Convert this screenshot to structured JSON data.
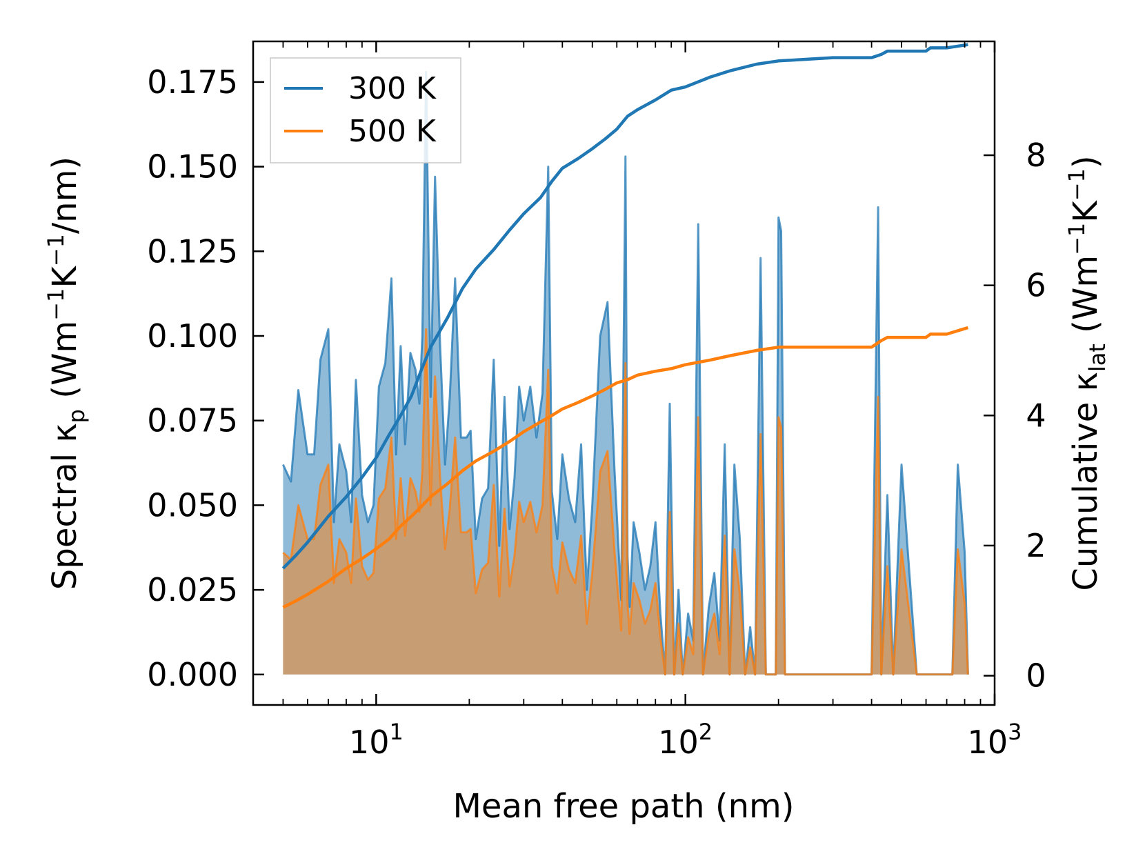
{
  "chart_data": {
    "type": "area",
    "xscale": "log",
    "xlim": [
      4.0,
      1000
    ],
    "ylim_left": [
      -0.009,
      0.187
    ],
    "ylim_right": [
      -0.45,
      9.75
    ],
    "xlabel": "Mean free path (nm)",
    "ylabel_left": {
      "main": "Spectral κ",
      "main_sub": "p",
      "unit_prefix": " (Wm",
      "sup1": "−1",
      "unit_mid": "K",
      "sup2": "−1",
      "unit_suffix": "/nm)"
    },
    "ylabel_right": {
      "main": "Cumulative κ",
      "main_sub": "lat",
      "unit_prefix": " (Wm",
      "sup1": "−1",
      "unit_mid": "K",
      "sup2": "−1",
      "unit_suffix": ")"
    },
    "x_ticks": [
      {
        "value": 10,
        "base": "10",
        "exp": "1"
      },
      {
        "value": 100,
        "base": "10",
        "exp": "2"
      },
      {
        "value": 1000,
        "base": "10",
        "exp": "3"
      }
    ],
    "y_ticks_left": [
      {
        "value": 0.0,
        "label": "0.000"
      },
      {
        "value": 0.025,
        "label": "0.025"
      },
      {
        "value": 0.05,
        "label": "0.050"
      },
      {
        "value": 0.075,
        "label": "0.075"
      },
      {
        "value": 0.1,
        "label": "0.100"
      },
      {
        "value": 0.125,
        "label": "0.125"
      },
      {
        "value": 0.15,
        "label": "0.150"
      },
      {
        "value": 0.175,
        "label": "0.175"
      }
    ],
    "y_ticks_right": [
      {
        "value": 0,
        "label": "0"
      },
      {
        "value": 2,
        "label": "2"
      },
      {
        "value": 4,
        "label": "4"
      },
      {
        "value": 6,
        "label": "6"
      },
      {
        "value": 8,
        "label": "8"
      }
    ],
    "legend": {
      "placement": "top-left",
      "entries": [
        {
          "label": "300 K",
          "color": "#1f77b4"
        },
        {
          "label": "500 K",
          "color": "#ff7f0e"
        }
      ]
    },
    "spectral_series": [
      {
        "name": "300 K",
        "color": "#1f77b4",
        "fill": "#1f77b4",
        "x": [
          5,
          5.3,
          5.6,
          6.0,
          6.3,
          6.6,
          7.0,
          7.3,
          7.6,
          8.0,
          8.3,
          8.6,
          9.0,
          9.4,
          9.8,
          10.2,
          10.7,
          11.2,
          11.6,
          12.0,
          12.4,
          12.9,
          13.4,
          13.8,
          14.1,
          14.5,
          15.0,
          15.5,
          16.1,
          16.7,
          17.3,
          18.0,
          18.8,
          19.6,
          20.2,
          21.0,
          22.0,
          23.0,
          24.0,
          25.0,
          26.0,
          27.0,
          28.0,
          29.0,
          30.0,
          31.5,
          33.0,
          34.5,
          36.0,
          37.0,
          38.5,
          40.0,
          42.0,
          44.0,
          46.0,
          48.0,
          50.0,
          53.0,
          56.0,
          59.0,
          62.0,
          64.0,
          65.0,
          66.0,
          68.0,
          71.0,
          74.0,
          77.0,
          80.0,
          83.0,
          86.0,
          89.0,
          92.0,
          95.0,
          98.0,
          102,
          106,
          110,
          114,
          119,
          124,
          129,
          134,
          139,
          144,
          150,
          156,
          162,
          168,
          175,
          182,
          189,
          196,
          200,
          204,
          210,
          300,
          400,
          420,
          430,
          450,
          470,
          500,
          560,
          600,
          610,
          620,
          640,
          680,
          700,
          730,
          760,
          800,
          820
        ],
        "y": [
          0.062,
          0.057,
          0.084,
          0.065,
          0.065,
          0.093,
          0.102,
          0.045,
          0.068,
          0.06,
          0.045,
          0.087,
          0.053,
          0.045,
          0.05,
          0.085,
          0.092,
          0.117,
          0.065,
          0.097,
          0.068,
          0.095,
          0.09,
          0.08,
          0.1,
          0.178,
          0.082,
          0.147,
          0.097,
          0.062,
          0.082,
          0.117,
          0.07,
          0.07,
          0.072,
          0.04,
          0.052,
          0.055,
          0.093,
          0.038,
          0.082,
          0.043,
          0.058,
          0.085,
          0.075,
          0.085,
          0.07,
          0.083,
          0.15,
          0.054,
          0.04,
          0.065,
          0.052,
          0.045,
          0.068,
          0.025,
          0.05,
          0.1,
          0.11,
          0.06,
          0.022,
          0.153,
          0.035,
          0.02,
          0.045,
          0.036,
          0.025,
          0.032,
          0.045,
          0.018,
          0.0,
          0.08,
          0.0,
          0.025,
          0.0,
          0.018,
          0.01,
          0.133,
          0.0,
          0.02,
          0.03,
          0.01,
          0.068,
          0.0,
          0.062,
          0.04,
          0.0,
          0.014,
          0.0,
          0.123,
          0.0,
          0.0,
          0.0,
          0.135,
          0.131,
          0.0,
          0.0,
          0.0,
          0.138,
          0.0,
          0.053,
          0.0,
          0.062,
          0.0,
          0.0,
          0.0,
          0.0,
          0.0,
          0.0,
          0.0,
          0.0,
          0.062,
          0.036,
          0.0
        ]
      },
      {
        "name": "500 K",
        "color": "#ff7f0e",
        "fill": "#ff7f0e",
        "x": [
          5,
          5.3,
          5.6,
          6.0,
          6.3,
          6.6,
          7.0,
          7.3,
          7.6,
          8.0,
          8.3,
          8.6,
          9.0,
          9.4,
          9.8,
          10.2,
          10.7,
          11.2,
          11.6,
          12.0,
          12.4,
          12.9,
          13.4,
          13.8,
          14.1,
          14.5,
          15.0,
          15.5,
          16.1,
          16.7,
          17.3,
          18.0,
          18.8,
          19.6,
          20.2,
          21.0,
          22.0,
          23.0,
          24.0,
          25.0,
          26.0,
          27.0,
          28.0,
          29.0,
          30.0,
          31.5,
          33.0,
          34.5,
          36.0,
          37.0,
          38.5,
          40.0,
          42.0,
          44.0,
          46.0,
          48.0,
          50.0,
          53.0,
          56.0,
          59.0,
          62.0,
          64.0,
          65.0,
          66.0,
          68.0,
          71.0,
          74.0,
          77.0,
          80.0,
          83.0,
          86.0,
          89.0,
          92.0,
          95.0,
          98.0,
          102,
          106,
          110,
          114,
          119,
          124,
          129,
          134,
          139,
          144,
          150,
          156,
          162,
          168,
          175,
          182,
          189,
          196,
          200,
          204,
          210,
          300,
          400,
          420,
          430,
          450,
          470,
          500,
          560,
          600,
          610,
          620,
          640,
          680,
          700,
          730,
          760,
          800,
          820
        ],
        "y": [
          0.036,
          0.034,
          0.05,
          0.04,
          0.04,
          0.056,
          0.062,
          0.027,
          0.04,
          0.036,
          0.027,
          0.052,
          0.032,
          0.028,
          0.03,
          0.052,
          0.055,
          0.07,
          0.04,
          0.058,
          0.041,
          0.058,
          0.054,
          0.048,
          0.06,
          0.102,
          0.05,
          0.088,
          0.058,
          0.037,
          0.049,
          0.07,
          0.042,
          0.042,
          0.043,
          0.024,
          0.031,
          0.033,
          0.056,
          0.023,
          0.049,
          0.026,
          0.035,
          0.051,
          0.045,
          0.051,
          0.042,
          0.05,
          0.09,
          0.032,
          0.024,
          0.039,
          0.031,
          0.027,
          0.041,
          0.015,
          0.03,
          0.06,
          0.066,
          0.036,
          0.013,
          0.092,
          0.021,
          0.012,
          0.027,
          0.022,
          0.015,
          0.019,
          0.027,
          0.011,
          0.0,
          0.048,
          0.0,
          0.015,
          0.0,
          0.011,
          0.006,
          0.076,
          0.0,
          0.012,
          0.018,
          0.006,
          0.041,
          0.0,
          0.037,
          0.024,
          0.0,
          0.008,
          0.0,
          0.071,
          0.0,
          0.0,
          0.0,
          0.076,
          0.073,
          0.0,
          0.0,
          0.0,
          0.082,
          0.0,
          0.032,
          0.0,
          0.037,
          0.0,
          0.0,
          0.0,
          0.0,
          0.0,
          0.0,
          0.0,
          0.0,
          0.037,
          0.021,
          0.0
        ]
      }
    ],
    "cumulative_series": [
      {
        "name": "300 K",
        "color": "#1f77b4",
        "x": [
          5,
          5.5,
          6,
          7,
          8,
          9,
          10,
          11,
          12,
          13,
          14,
          15,
          17,
          19,
          21,
          24,
          27,
          30,
          34,
          37,
          40,
          45,
          50,
          55,
          60,
          65,
          70,
          80,
          90,
          100,
          120,
          140,
          170,
          200,
          300,
          400,
          430,
          450,
          600,
          620,
          700,
          820
        ],
        "y": [
          1.65,
          1.85,
          2.05,
          2.45,
          2.75,
          3.05,
          3.35,
          3.7,
          4.0,
          4.3,
          4.7,
          5.05,
          5.5,
          5.95,
          6.25,
          6.55,
          6.85,
          7.1,
          7.35,
          7.6,
          7.8,
          7.95,
          8.1,
          8.25,
          8.4,
          8.6,
          8.7,
          8.85,
          9.0,
          9.05,
          9.2,
          9.3,
          9.4,
          9.45,
          9.5,
          9.5,
          9.55,
          9.6,
          9.6,
          9.65,
          9.65,
          9.7
        ]
      },
      {
        "name": "500 K",
        "color": "#ff7f0e",
        "x": [
          5,
          5.5,
          6,
          7,
          8,
          9,
          10,
          11,
          12,
          13,
          14,
          15,
          17,
          19,
          21,
          24,
          27,
          30,
          34,
          37,
          40,
          45,
          50,
          55,
          60,
          65,
          70,
          80,
          90,
          100,
          120,
          140,
          170,
          200,
          300,
          400,
          430,
          450,
          600,
          620,
          700,
          820
        ],
        "y": [
          1.05,
          1.15,
          1.25,
          1.45,
          1.65,
          1.8,
          1.95,
          2.1,
          2.3,
          2.45,
          2.6,
          2.75,
          2.95,
          3.15,
          3.3,
          3.45,
          3.6,
          3.75,
          3.9,
          4.0,
          4.1,
          4.2,
          4.3,
          4.4,
          4.5,
          4.55,
          4.62,
          4.68,
          4.72,
          4.78,
          4.85,
          4.92,
          5.0,
          5.05,
          5.05,
          5.05,
          5.15,
          5.2,
          5.2,
          5.25,
          5.25,
          5.35
        ]
      }
    ]
  }
}
